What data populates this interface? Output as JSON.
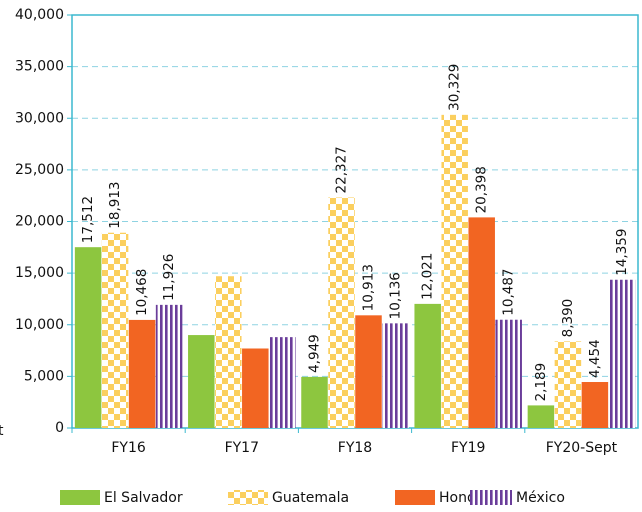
{
  "chart_data": {
    "type": "bar",
    "annotation": "t",
    "categories": [
      "FY16",
      "FY17",
      "FY18",
      "FY19",
      "FY20-Sept"
    ],
    "series": [
      {
        "name": "El Salvador",
        "color": "#8dc63f",
        "pattern": "solid",
        "values": [
          17512,
          9000,
          4949,
          12021,
          2189
        ],
        "value_labels": [
          "17,512",
          null,
          "4,949",
          "12,021",
          "2,189"
        ]
      },
      {
        "name": "Guatemala",
        "color": "#fbcf5e",
        "pattern": "checker",
        "values": [
          18913,
          14700,
          22327,
          30329,
          8390
        ],
        "value_labels": [
          "18,913",
          null,
          "22,327",
          "30,329",
          "8,390"
        ]
      },
      {
        "name": "Honduras",
        "color": "#f26522",
        "pattern": "solid",
        "values": [
          10468,
          7700,
          10913,
          20398,
          4454
        ],
        "value_labels": [
          "10,468",
          null,
          "10,913",
          "20,398",
          "4,454"
        ]
      },
      {
        "name": "México",
        "color": "#6a3d9a",
        "pattern": "stripes",
        "values": [
          11926,
          8800,
          10136,
          10487,
          14359
        ],
        "value_labels": [
          "11,926",
          null,
          "10,136",
          "10,487",
          "14,359"
        ]
      }
    ],
    "ylim": [
      0,
      40000
    ],
    "yticks": [
      0,
      {
        "value": 5000,
        "label": "5,000"
      },
      {
        "value": 10000,
        "label": "10,000"
      },
      {
        "value": 15000,
        "label": "15,000"
      },
      {
        "value": 20000,
        "label": "20,000"
      },
      {
        "value": 25000,
        "label": "25,000"
      },
      {
        "value": 30000,
        "label": "30,000"
      },
      {
        "value": 35000,
        "label": "35,000"
      },
      {
        "value": 40000,
        "label": "40,000"
      }
    ],
    "grid": true,
    "legend": "bottom"
  }
}
